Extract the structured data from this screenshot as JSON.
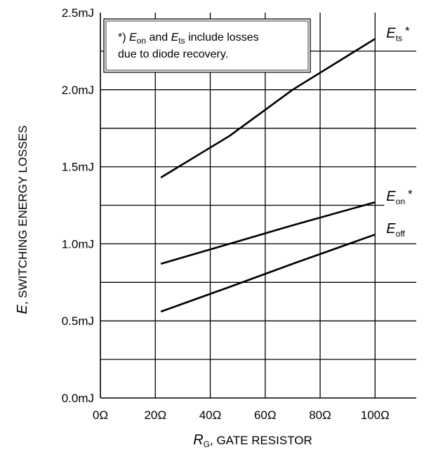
{
  "chart_data": {
    "type": "line",
    "x_unit": "Ω",
    "xlim": [
      0,
      115
    ],
    "ylim": [
      0,
      2.5
    ],
    "x_ticks": [
      "0Ω",
      "20Ω",
      "40Ω",
      "60Ω",
      "80Ω",
      "100Ω"
    ],
    "y_ticks": [
      "0.0mJ",
      "0.5mJ",
      "1.0mJ",
      "1.5mJ",
      "2.0mJ",
      "2.5mJ"
    ],
    "grid": true,
    "xlabel": {
      "main": "R",
      "sub": "G",
      "rest": ", GATE RESISTOR"
    },
    "ylabel": {
      "main": "E",
      "rest": ", SWITCHING ENERGY LOSSES"
    },
    "annotation": {
      "prefix": "*) ",
      "e1": "E",
      "e1_sub": "on",
      "mid": " and ",
      "e2": "E",
      "e2_sub": "ts",
      "suffix": " include losses",
      "line2": "due to diode recovery."
    },
    "series": [
      {
        "name": "Ets*",
        "label_main": "E",
        "label_sub": "ts",
        "label_sup": "*",
        "x": [
          22,
          47,
          70,
          100
        ],
        "y": [
          1.43,
          1.7,
          2.0,
          2.33
        ]
      },
      {
        "name": "Eon*",
        "label_main": "E",
        "label_sub": "on",
        "label_sup": "*",
        "x": [
          22,
          47,
          70,
          100
        ],
        "y": [
          0.87,
          1.0,
          1.12,
          1.27
        ]
      },
      {
        "name": "Eoff",
        "label_main": "E",
        "label_sub": "off",
        "label_sup": "",
        "x": [
          22,
          47,
          70,
          100
        ],
        "y": [
          0.56,
          0.72,
          0.87,
          1.06
        ]
      }
    ]
  }
}
